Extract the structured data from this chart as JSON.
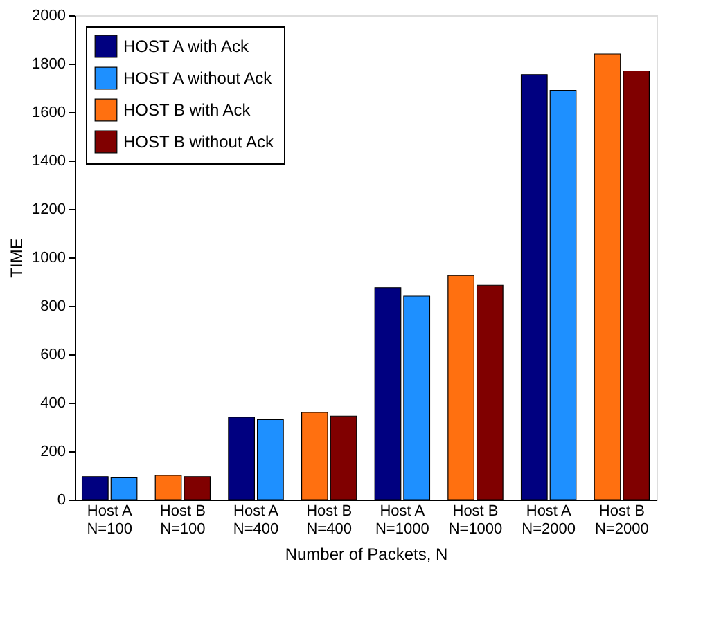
{
  "chart_data": {
    "type": "bar",
    "xlabel": "Number of Packets, N",
    "ylabel": "TIME",
    "categories": [
      "Host A\nN=100",
      "Host B\nN=100",
      "Host A\nN=400",
      "Host B\nN=400",
      "Host A\nN=1000",
      "Host B\nN=1000",
      "Host A\nN=2000",
      "Host B\nN=2000"
    ],
    "series": [
      {
        "name": "HOST A with Ack",
        "color": "#000080",
        "values": [
          95,
          null,
          340,
          null,
          875,
          null,
          1755,
          null
        ]
      },
      {
        "name": "HOST A without Ack",
        "color": "#1e90ff",
        "values": [
          90,
          null,
          330,
          null,
          840,
          null,
          1690,
          null
        ]
      },
      {
        "name": "HOST B with Ack",
        "color": "#ff7010",
        "values": [
          null,
          100,
          null,
          360,
          null,
          925,
          null,
          1840
        ]
      },
      {
        "name": "HOST B without Ack",
        "color": "#800000",
        "values": [
          null,
          95,
          null,
          345,
          null,
          885,
          null,
          1770
        ]
      }
    ],
    "ylim": [
      0,
      2000
    ],
    "yticks": [
      0,
      200,
      400,
      600,
      800,
      1000,
      1200,
      1400,
      1600,
      1800,
      2000
    ],
    "grid": false,
    "legend": "top left"
  }
}
